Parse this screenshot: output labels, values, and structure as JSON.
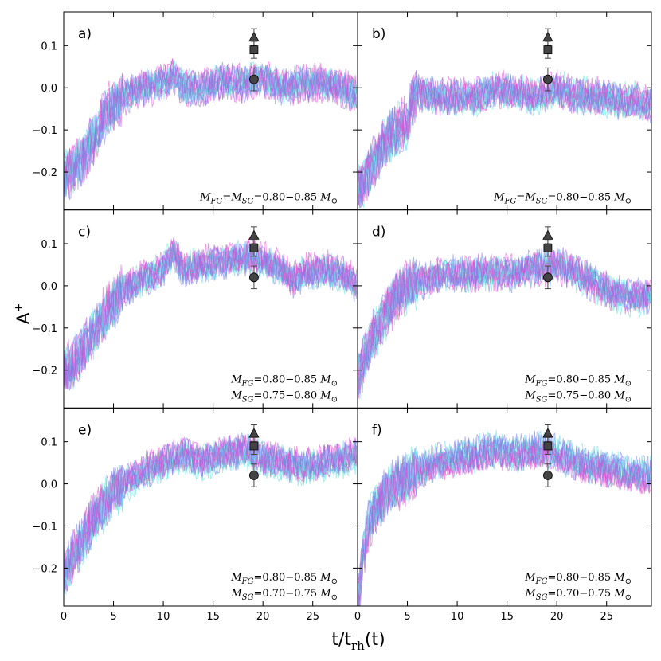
{
  "chart_data": {
    "type": "line",
    "title": "",
    "xlabel": "t/t_rh(t)",
    "xlabel_main": "t/t",
    "xlabel_sub": "rh",
    "xlabel_tail": "(t)",
    "ylabel": "A+",
    "ylabel_main": "A",
    "ylabel_sup": "+",
    "xlim": [
      0,
      29.5
    ],
    "ylim": [
      -0.29,
      0.18
    ],
    "xticks": [
      "0",
      "5",
      "10",
      "15",
      "20",
      "25"
    ],
    "xtick_values": [
      0,
      5,
      10,
      15,
      20,
      25
    ],
    "yticks": [
      "0.1",
      "0.0",
      "−0.1",
      "−0.2"
    ],
    "ytick_values": [
      0.1,
      0.0,
      -0.1,
      -0.2
    ],
    "series_colors": [
      "#5fe3e3",
      "#e64bd2",
      "#7b7bea"
    ],
    "marker_color": "#444444",
    "grid": false,
    "legend": "none",
    "markers": {
      "x": 19.1,
      "triangle": {
        "y": 0.12,
        "err": 0.02
      },
      "square": {
        "y": 0.09,
        "err": 0.02
      },
      "circle": {
        "y": 0.02,
        "err": 0.027
      }
    },
    "panels": [
      {
        "id": "a",
        "label": "a)",
        "annotation": [
          "MFG=MSG=0.80−0.85 M⊙"
        ],
        "mass_fg": "0.80−0.85",
        "mass_sg": "0.80−0.85",
        "mass_unit": "M⊙",
        "trend_x": [
          0,
          1,
          2,
          3,
          4,
          5,
          6,
          8,
          10,
          11,
          12,
          14,
          16,
          18,
          20,
          22,
          24,
          26,
          28,
          29.5
        ],
        "trend_y": [
          -0.21,
          -0.19,
          -0.16,
          -0.12,
          -0.07,
          -0.04,
          -0.02,
          0.0,
          0.01,
          0.03,
          0.0,
          0.0,
          0.02,
          0.01,
          0.02,
          0.0,
          0.01,
          0.01,
          0.0,
          -0.02
        ]
      },
      {
        "id": "b",
        "label": "b)",
        "annotation": [
          "MFG=MSG=0.80−0.85 M⊙"
        ],
        "mass_fg": "0.80−0.85",
        "mass_sg": "0.80−0.85",
        "mass_unit": "M⊙",
        "trend_x": [
          0,
          1,
          2,
          3,
          4,
          5,
          5.5,
          6,
          8,
          10,
          12,
          14,
          16,
          18,
          20,
          22,
          24,
          26,
          28,
          29.5
        ],
        "trend_y": [
          -0.25,
          -0.2,
          -0.16,
          -0.12,
          -0.1,
          -0.08,
          -0.03,
          -0.01,
          -0.02,
          -0.02,
          -0.02,
          0.0,
          -0.01,
          -0.02,
          0.0,
          -0.02,
          -0.02,
          -0.03,
          -0.03,
          -0.04
        ]
      },
      {
        "id": "c",
        "label": "c)",
        "annotation": [
          "MFG=0.80−0.85 M⊙",
          "MSG=0.75−0.80 M⊙"
        ],
        "mass_fg": "0.80−0.85",
        "mass_sg": "0.75−0.80",
        "mass_unit": "M⊙",
        "trend_x": [
          0,
          1,
          2,
          3,
          4,
          5,
          6,
          8,
          10,
          11,
          12,
          14,
          16,
          18,
          20,
          22,
          23,
          24,
          26,
          28,
          29.5
        ],
        "trend_y": [
          -0.2,
          -0.18,
          -0.15,
          -0.11,
          -0.07,
          -0.04,
          -0.01,
          0.02,
          0.04,
          0.08,
          0.04,
          0.05,
          0.06,
          0.07,
          0.06,
          0.04,
          0.01,
          0.03,
          0.04,
          0.03,
          0.0
        ]
      },
      {
        "id": "d",
        "label": "d)",
        "annotation": [
          "MFG=0.80−0.85 M⊙",
          "MSG=0.75−0.80 M⊙"
        ],
        "mass_fg": "0.80−0.85",
        "mass_sg": "0.75−0.80",
        "mass_unit": "M⊙",
        "trend_x": [
          0,
          1,
          2,
          3,
          4,
          5,
          6,
          8,
          10,
          12,
          14,
          16,
          18,
          20,
          22,
          24,
          26,
          28,
          29.5
        ],
        "trend_y": [
          -0.22,
          -0.15,
          -0.1,
          -0.06,
          -0.02,
          0.0,
          0.01,
          0.02,
          0.03,
          0.03,
          0.03,
          0.03,
          0.04,
          0.05,
          0.03,
          0.0,
          -0.02,
          -0.03,
          -0.02
        ]
      },
      {
        "id": "e",
        "label": "e)",
        "annotation": [
          "MFG=0.80−0.85 M⊙",
          "MSG=0.70−0.75 M⊙"
        ],
        "mass_fg": "0.80−0.85",
        "mass_sg": "0.70−0.75",
        "mass_unit": "M⊙",
        "trend_x": [
          0,
          1,
          2,
          3,
          4,
          5,
          6,
          8,
          10,
          12,
          14,
          16,
          18,
          20,
          22,
          24,
          26,
          28,
          29.5
        ],
        "trend_y": [
          -0.21,
          -0.17,
          -0.13,
          -0.08,
          -0.05,
          -0.02,
          0.0,
          0.03,
          0.05,
          0.07,
          0.05,
          0.07,
          0.08,
          0.06,
          0.05,
          0.04,
          0.05,
          0.06,
          0.07
        ]
      },
      {
        "id": "f",
        "label": "f)",
        "annotation": [
          "MFG=0.80−0.85 M⊙",
          "MSG=0.70−0.75 M⊙"
        ],
        "mass_fg": "0.80−0.85",
        "mass_sg": "0.70−0.75",
        "mass_unit": "M⊙",
        "trend_x": [
          0,
          0.5,
          1,
          2,
          3,
          4,
          5,
          6,
          8,
          10,
          12,
          14,
          16,
          18,
          19,
          20,
          22,
          24,
          26,
          28,
          29.5
        ],
        "trend_y": [
          -0.29,
          -0.18,
          -0.1,
          -0.05,
          -0.02,
          0.0,
          0.01,
          0.03,
          0.05,
          0.06,
          0.07,
          0.08,
          0.07,
          0.08,
          0.08,
          0.07,
          0.05,
          0.04,
          0.03,
          0.02,
          0.02
        ]
      }
    ]
  }
}
